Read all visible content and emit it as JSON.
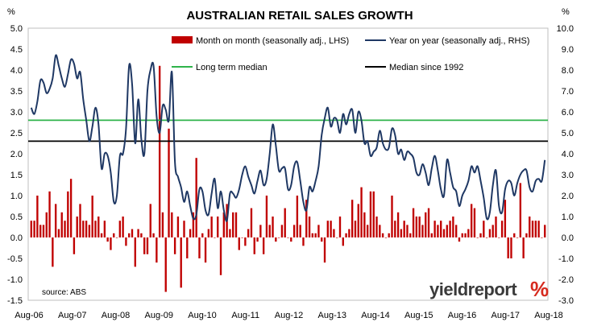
{
  "chart_data": {
    "type": "bar+line",
    "title": "AUSTRALIAN RETAIL SALES GROWTH",
    "left_unit": "%",
    "right_unit": "%",
    "source": "source: ABS",
    "logo": "yieldreport %",
    "ylim_left": [
      -1.5,
      5.0
    ],
    "ylim_right": [
      -3.0,
      10.0
    ],
    "left_ticks": [
      "-1.5",
      "-1.0",
      "-0.5",
      "0.0",
      "0.5",
      "1.0",
      "1.5",
      "2.0",
      "2.5",
      "3.0",
      "3.5",
      "4.0",
      "4.5",
      "5.0"
    ],
    "right_ticks": [
      "-3.0",
      "-2.0",
      "-1.0",
      "0.0",
      "1.0",
      "2.0",
      "3.0",
      "4.0",
      "5.0",
      "6.0",
      "7.0",
      "8.0",
      "9.0",
      "10.0"
    ],
    "x_ticks": [
      "Aug-06",
      "Aug-07",
      "Aug-08",
      "Aug-09",
      "Aug-10",
      "Aug-11",
      "Aug-12",
      "Aug-13",
      "Aug-14",
      "Aug-15",
      "Aug-16",
      "Aug-17",
      "Aug-18"
    ],
    "grid": false,
    "legend": [
      {
        "label": "Month on month (seasonally adj., LHS)",
        "color": "#c00000",
        "kind": "bar"
      },
      {
        "label": "Year on year (seasonally adj., RHS)",
        "color": "#1f3864",
        "kind": "line"
      },
      {
        "label": "Long term median",
        "color": "#2fb34a",
        "kind": "line"
      },
      {
        "label": "Median since 1992",
        "color": "#000000",
        "kind": "line"
      }
    ],
    "series": [
      {
        "name": "Month on month (seasonally adj., LHS)",
        "axis": "left",
        "color": "#c00000",
        "values": [
          0.4,
          0.4,
          1.0,
          0.3,
          0.3,
          0.6,
          1.1,
          -0.7,
          0.8,
          0.2,
          0.6,
          0.4,
          1.1,
          1.4,
          -0.4,
          0.5,
          0.8,
          0.4,
          0.4,
          0.3,
          1.0,
          0.4,
          0.5,
          0.1,
          0.4,
          -0.1,
          -0.3,
          0.1,
          0.0,
          0.4,
          0.5,
          -0.2,
          0.1,
          0.2,
          -0.7,
          0.2,
          0.1,
          -0.4,
          -0.4,
          0.8,
          0.1,
          -0.6,
          4.1,
          0.6,
          -1.3,
          2.6,
          0.6,
          -0.4,
          0.5,
          -1.2,
          0.4,
          -0.5,
          0.2,
          0.6,
          1.9,
          -0.5,
          0.1,
          -0.6,
          0.2,
          0.5,
          0.0,
          0.5,
          -0.9,
          0.6,
          0.8,
          0.2,
          0.6,
          0.6,
          -0.3,
          0.0,
          -0.2,
          0.2,
          0.7,
          -0.4,
          -0.1,
          0.3,
          -0.4,
          1.0,
          0.3,
          0.5,
          -0.1,
          0.0,
          0.3,
          0.7,
          0.0,
          -0.1,
          0.3,
          1.0,
          0.3,
          -0.2,
          0.9,
          0.5,
          0.1,
          0.1,
          0.3,
          -0.1,
          -0.6,
          0.4,
          0.4,
          0.2,
          0.0,
          0.5,
          -0.2,
          0.1,
          0.2,
          0.9,
          0.4,
          0.8,
          1.2,
          0.6,
          0.3,
          1.1,
          1.1,
          0.5,
          0.3,
          0.1,
          0.0,
          0.1,
          1.0,
          0.4,
          0.6,
          0.2,
          0.4,
          0.3,
          0.1,
          0.7,
          0.5,
          0.5,
          0.3,
          0.6,
          0.7,
          0.1,
          0.4,
          0.3,
          0.4,
          0.2,
          0.3,
          0.4,
          0.5,
          0.3,
          -0.1,
          0.1,
          0.1,
          0.2,
          0.8,
          0.7,
          0.0,
          0.1,
          0.4,
          0.0,
          0.2,
          0.3,
          0.5,
          0.0,
          0.4,
          0.9,
          -0.5,
          -0.5,
          0.1,
          0.0,
          1.3,
          -0.5,
          0.1,
          0.5,
          0.4,
          0.4,
          0.4,
          0.0,
          0.3
        ]
      },
      {
        "name": "Year on year (seasonally adj., RHS)",
        "axis": "right",
        "color": "#1f3864",
        "values": [
          6.2,
          5.9,
          6.5,
          7.5,
          7.4,
          6.9,
          7.1,
          7.6,
          8.7,
          8.2,
          7.6,
          7.2,
          7.8,
          8.5,
          8.3,
          7.6,
          7.9,
          6.6,
          5.6,
          4.6,
          5.3,
          6.2,
          5.4,
          3.3,
          4.0,
          3.9,
          3.1,
          1.7,
          2.0,
          3.9,
          4.0,
          5.2,
          8.2,
          7.3,
          4.5,
          6.6,
          4.7,
          4.0,
          7.0,
          8.0,
          8.2,
          5.8,
          5.0,
          6.3,
          6.1,
          5.6,
          7.9,
          3.6,
          2.9,
          2.4,
          1.7,
          2.2,
          1.5,
          0.9,
          1.1,
          2.3,
          2.2,
          1.3,
          1.1,
          2.1,
          2.8,
          1.4,
          2.2,
          1.3,
          0.8,
          2.1,
          2.1,
          1.9,
          2.3,
          3.0,
          3.4,
          2.9,
          2.5,
          2.1,
          2.7,
          3.2,
          2.5,
          2.8,
          4.0,
          5.4,
          4.4,
          3.2,
          3.3,
          3.3,
          2.3,
          2.5,
          3.4,
          3.6,
          2.7,
          1.7,
          1.3,
          2.4,
          2.2,
          2.7,
          3.4,
          4.9,
          5.7,
          6.2,
          5.3,
          5.7,
          5.6,
          5.0,
          5.9,
          5.4,
          5.9,
          6.1,
          5.0,
          6.0,
          5.6,
          4.5,
          4.6,
          3.9,
          4.1,
          4.3,
          5.1,
          4.5,
          4.2,
          4.3,
          5.2,
          4.9,
          4.0,
          4.2,
          3.7,
          4.1,
          4.0,
          3.8,
          3.1,
          3.0,
          3.5,
          3.1,
          2.5,
          3.3,
          3.9,
          3.2,
          2.3,
          2.0,
          3.7,
          3.1,
          2.4,
          2.2,
          1.5,
          2.0,
          2.3,
          2.7,
          3.4,
          3.1,
          3.4,
          2.7,
          1.9,
          0.9,
          1.2,
          2.5,
          3.2,
          1.5,
          1.2,
          2.3,
          2.7,
          2.6,
          2.0,
          2.6,
          3.0,
          3.2,
          3.2,
          2.4,
          2.2,
          2.7,
          2.8,
          2.7,
          3.7
        ]
      },
      {
        "name": "Long term median",
        "axis": "left",
        "color": "#2fb34a",
        "constant": 2.8
      },
      {
        "name": "Median since 1992",
        "axis": "left",
        "color": "#000000",
        "constant": 2.3
      }
    ]
  }
}
